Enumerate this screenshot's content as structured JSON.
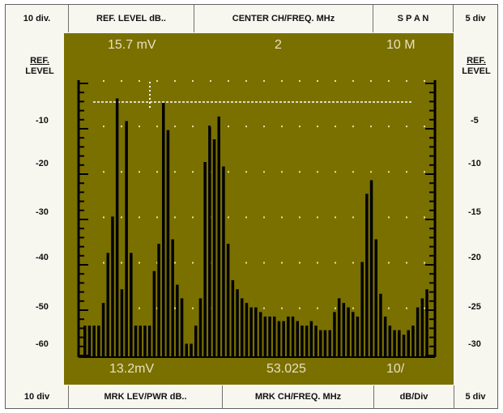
{
  "header": {
    "left_div": "10 div.",
    "ref_level": "REF. LEVEL dB..",
    "center": "CENTER CH/FREQ. MHz",
    "span": "S P A N",
    "right_div": "5 div"
  },
  "footer": {
    "left_div": "10 div",
    "mrk_lev": "MRK LEV/PWR dB..",
    "mrk_ch": "MRK CH/FREQ. MHz",
    "db_div": "dB/Div",
    "right_div": "5 div"
  },
  "left_scale": {
    "ref_line1": "REF.",
    "ref_line2": "LEVEL",
    "ticks": [
      "-10",
      "-20",
      "-30",
      "-40",
      "-50",
      "-60"
    ]
  },
  "right_scale": {
    "ref_line1": "REF.",
    "ref_line2": "LEVEL",
    "ticks": [
      "-5",
      "-10",
      "-15",
      "-20",
      "-25",
      "-30"
    ]
  },
  "screen": {
    "top_ref_level": "15.7 mV",
    "top_center": "2",
    "top_span": "10 M",
    "bottom_marker_level": "13.2mV",
    "bottom_marker_freq": "53.025",
    "bottom_db_div": "10/"
  },
  "colors": {
    "screen_bg": "#7a7000",
    "trace": "#000000",
    "dots": "#e8e0a0"
  },
  "chart_data": {
    "type": "bar",
    "description_unit": "dB",
    "ylim": [
      -62,
      0
    ],
    "values": [
      -54,
      -54,
      -54,
      -54,
      -49,
      -38,
      -30,
      -4,
      -46,
      -9,
      -38,
      -54,
      -54,
      -54,
      -54,
      -42,
      -36,
      -5,
      -11,
      -35,
      -45,
      -48,
      -58,
      -58,
      -54,
      -48,
      -18,
      -10,
      -13,
      -8,
      -19,
      -36,
      -44,
      -46,
      -48,
      -49,
      -50,
      -50,
      -51,
      -52,
      -52,
      -52,
      -53,
      -53,
      -52,
      -52,
      -53,
      -54,
      -54,
      -53,
      -54,
      -55,
      -55,
      -55,
      -51,
      -48,
      -49,
      -50,
      -51,
      -52,
      -40,
      -25,
      -22,
      -35,
      -47,
      -52,
      -54,
      -55,
      -55,
      -56,
      -55,
      -54,
      -50,
      -48,
      -46
    ]
  }
}
